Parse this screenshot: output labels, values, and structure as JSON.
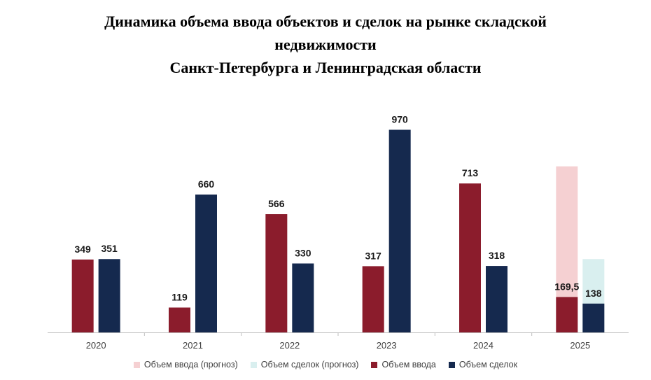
{
  "colors": {
    "input": "#8b1c2c",
    "deals": "#15294e",
    "input_forecast": "#f5d0d2",
    "deals_forecast": "#d9efef",
    "axis": "#bfbfbf"
  },
  "chart_data": {
    "type": "bar",
    "title_lines": [
      "Динамика объема ввода объектов и сделок на рынке складской",
      "недвижимости",
      "Санкт-Петербурга и Ленинградская области"
    ],
    "categories": [
      "2020",
      "2021",
      "2022",
      "2023",
      "2024",
      "2025"
    ],
    "series": [
      {
        "name": "Объем ввода (прогноз)",
        "values": [
          null,
          null,
          null,
          null,
          null,
          795
        ],
        "stack_with": "Объем ввода",
        "labels": [
          null,
          null,
          null,
          null,
          null,
          null
        ]
      },
      {
        "name": "Объем сделок (прогноз)",
        "values": [
          null,
          null,
          null,
          null,
          null,
          351
        ],
        "stack_with": "Объем сделок",
        "labels": [
          null,
          null,
          null,
          null,
          null,
          null
        ]
      },
      {
        "name": "Объем ввода",
        "values": [
          349,
          119,
          566,
          317,
          713,
          169.5
        ],
        "labels": [
          "349",
          "119",
          "566",
          "317",
          "713",
          "169,5"
        ]
      },
      {
        "name": "Объем сделок",
        "values": [
          351,
          660,
          330,
          970,
          318,
          138
        ],
        "labels": [
          "351",
          "660",
          "330",
          "970",
          "318",
          "138"
        ]
      }
    ],
    "ylim": [
      0,
      1000
    ],
    "xlabel": "",
    "ylabel": "",
    "grid": false,
    "legend_position": "bottom"
  }
}
